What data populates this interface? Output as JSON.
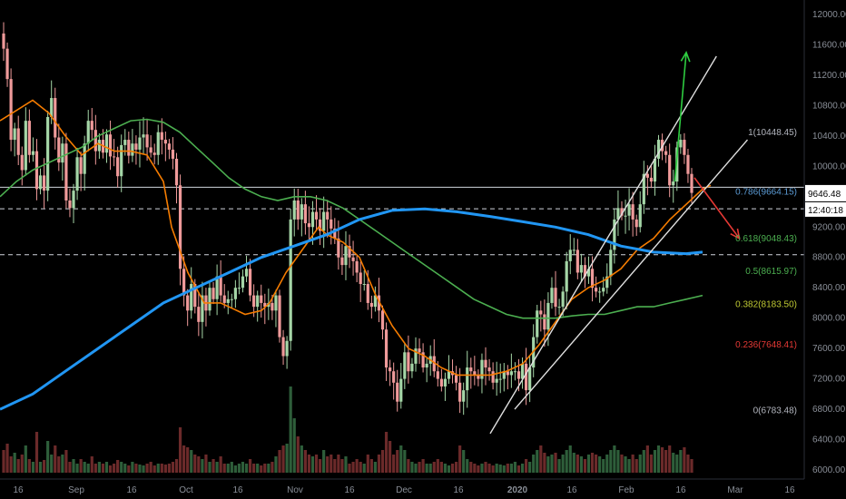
{
  "chart_data": {
    "type": "candlestick",
    "instrument": "BTCUSD daily (TradingView-style)",
    "y_axis": {
      "ylim": [
        6000,
        12000
      ],
      "ticks": [
        "12000.00",
        "11600.00",
        "11200.00",
        "10800.00",
        "10400.00",
        "10000.00",
        "9600.00",
        "9200.00",
        "8800.00",
        "8400.00",
        "8000.00",
        "7600.00",
        "7200.00",
        "6800.00",
        "6400.00",
        "6000.00"
      ],
      "tick_values": [
        12000,
        11600,
        11200,
        10800,
        10400,
        10000,
        9600,
        9200,
        8800,
        8400,
        8000,
        7600,
        7200,
        6800,
        6400,
        6000
      ]
    },
    "x_axis": {
      "ticks": [
        "16",
        "Sep",
        "16",
        "Oct",
        "16",
        "Nov",
        "16",
        "Dec",
        "16",
        "2020",
        "16",
        "Feb",
        "16",
        "Mar",
        "16"
      ],
      "bold": [
        "2020"
      ]
    },
    "fib_levels": [
      {
        "label": "1(10448.45)",
        "value": 10448.45,
        "color": "#b2b5be"
      },
      {
        "label": "0.786(9664.15)",
        "value": 9664.15,
        "color": "#5b9bd5"
      },
      {
        "label": "0.618(9048.43)",
        "value": 9048.43,
        "color": "#4caf50"
      },
      {
        "label": "0.5(8615.97)",
        "value": 8615.97,
        "color": "#4caf50"
      },
      {
        "label": "0.382(8183.50)",
        "value": 8183.5,
        "color": "#c0ca33"
      },
      {
        "label": "0.236(7648.41)",
        "value": 7648.41,
        "color": "#e53935"
      },
      {
        "label": "0(6783.48)",
        "value": 6783.48,
        "color": "#b2b5be"
      }
    ],
    "current_price": {
      "value": 9646.48,
      "label": "9646.48",
      "countdown": "12:40:18"
    },
    "horizontal_lines": [
      9724,
      9440,
      8836
    ],
    "closes": [
      11550,
      11150,
      10350,
      10500,
      10150,
      9950,
      10600,
      10150,
      10200,
      9700,
      9880,
      9680,
      10650,
      10900,
      10380,
      10050,
      10300,
      9550,
      9450,
      9680,
      10120,
      9900,
      10300,
      10600,
      10480,
      10200,
      10350,
      10180,
      10420,
      10130,
      10120,
      9870,
      10280,
      10350,
      10140,
      10300,
      10220,
      10380,
      10420,
      10250,
      10180,
      10150,
      10450,
      10350,
      10300,
      10220,
      10100,
      9750,
      8650,
      8300,
      8100,
      8450,
      8150,
      7950,
      8300,
      8100,
      8400,
      8250,
      8550,
      8300,
      8200,
      8250,
      8250,
      8400,
      8400,
      8550,
      8650,
      8300,
      8150,
      8300,
      8200,
      8150,
      8200,
      8100,
      8300,
      7750,
      7500,
      7700,
      9300,
      9550,
      9300,
      9500,
      9250,
      9200,
      9400,
      9300,
      9150,
      9400,
      9300,
      9180,
      9050,
      8800,
      8700,
      8950,
      8800,
      8750,
      8600,
      8450,
      8450,
      8200,
      8150,
      8300,
      8100,
      7850,
      7350,
      7300,
      7150,
      6900,
      7200,
      7550,
      7300,
      7400,
      7600,
      7550,
      7350,
      7400,
      7500,
      7300,
      7200,
      7100,
      7200,
      7300,
      7250,
      7150,
      6900,
      7050,
      7350,
      7300,
      7250,
      7200,
      7450,
      7350,
      7300,
      7150,
      7200,
      7200,
      7300,
      7250,
      7300,
      7300,
      7200,
      7400,
      7050,
      7350,
      7750,
      8100,
      8050,
      7850,
      8200,
      8400,
      8150,
      8150,
      8350,
      8750,
      8900,
      8900,
      8600,
      8700,
      8550,
      8650,
      8400,
      8350,
      8350,
      8400,
      8550,
      8900,
      9300,
      9450,
      9350,
      9350,
      9500,
      9300,
      9200,
      9500,
      9900,
      9850,
      9800,
      10100,
      10350,
      10200,
      10150,
      9750,
      9800,
      10250,
      10350,
      10150,
      9900,
      9650
    ],
    "volumes": [
      0.25,
      0.32,
      0.18,
      0.22,
      0.15,
      0.2,
      0.3,
      0.15,
      0.12,
      0.45,
      0.12,
      0.14,
      0.35,
      0.2,
      0.3,
      0.18,
      0.2,
      0.25,
      0.12,
      0.15,
      0.1,
      0.15,
      0.12,
      0.1,
      0.18,
      0.1,
      0.12,
      0.1,
      0.12,
      0.08,
      0.1,
      0.14,
      0.12,
      0.1,
      0.08,
      0.12,
      0.1,
      0.09,
      0.08,
      0.1,
      0.12,
      0.08,
      0.1,
      0.1,
      0.09,
      0.1,
      0.12,
      0.15,
      0.5,
      0.3,
      0.28,
      0.25,
      0.2,
      0.18,
      0.15,
      0.2,
      0.12,
      0.15,
      0.12,
      0.18,
      0.1,
      0.1,
      0.12,
      0.08,
      0.1,
      0.12,
      0.1,
      0.15,
      0.1,
      0.1,
      0.08,
      0.1,
      0.1,
      0.12,
      0.18,
      0.25,
      0.3,
      0.32,
      0.95,
      0.6,
      0.4,
      0.3,
      0.25,
      0.2,
      0.18,
      0.2,
      0.15,
      0.25,
      0.18,
      0.2,
      0.15,
      0.2,
      0.15,
      0.18,
      0.1,
      0.12,
      0.15,
      0.12,
      0.1,
      0.2,
      0.15,
      0.12,
      0.2,
      0.25,
      0.45,
      0.35,
      0.2,
      0.25,
      0.3,
      0.25,
      0.15,
      0.12,
      0.1,
      0.12,
      0.15,
      0.1,
      0.1,
      0.12,
      0.15,
      0.12,
      0.1,
      0.08,
      0.1,
      0.12,
      0.3,
      0.25,
      0.15,
      0.12,
      0.1,
      0.08,
      0.1,
      0.12,
      0.1,
      0.08,
      0.1,
      0.09,
      0.08,
      0.1,
      0.1,
      0.12,
      0.08,
      0.1,
      0.15,
      0.12,
      0.2,
      0.25,
      0.3,
      0.22,
      0.18,
      0.2,
      0.22,
      0.15,
      0.2,
      0.25,
      0.3,
      0.22,
      0.2,
      0.18,
      0.15,
      0.2,
      0.22,
      0.2,
      0.18,
      0.15,
      0.2,
      0.25,
      0.3,
      0.25,
      0.2,
      0.18,
      0.15,
      0.2,
      0.15,
      0.2,
      0.25,
      0.3,
      0.2,
      0.25,
      0.3,
      0.28,
      0.25,
      0.3,
      0.22,
      0.2,
      0.25,
      0.28,
      0.2,
      0.15,
      0.1
    ],
    "series": [
      {
        "name": "EMA (orange)",
        "color": "#f57c00",
        "xy": [
          [
            0,
            10600
          ],
          [
            0.04,
            10870
          ],
          [
            0.06,
            10700
          ],
          [
            0.08,
            10400
          ],
          [
            0.1,
            10150
          ],
          [
            0.12,
            10300
          ],
          [
            0.14,
            10200
          ],
          [
            0.16,
            10200
          ],
          [
            0.18,
            10150
          ],
          [
            0.2,
            9800
          ],
          [
            0.21,
            9200
          ],
          [
            0.23,
            8600
          ],
          [
            0.25,
            8200
          ],
          [
            0.27,
            8200
          ],
          [
            0.3,
            8050
          ],
          [
            0.32,
            8100
          ],
          [
            0.33,
            8200
          ],
          [
            0.35,
            8600
          ],
          [
            0.37,
            8900
          ],
          [
            0.39,
            9200
          ],
          [
            0.4,
            9100
          ],
          [
            0.42,
            9000
          ],
          [
            0.44,
            8800
          ],
          [
            0.46,
            8300
          ],
          [
            0.48,
            7900
          ],
          [
            0.5,
            7600
          ],
          [
            0.52,
            7500
          ],
          [
            0.54,
            7350
          ],
          [
            0.56,
            7250
          ],
          [
            0.58,
            7250
          ],
          [
            0.6,
            7250
          ],
          [
            0.62,
            7300
          ],
          [
            0.64,
            7400
          ],
          [
            0.66,
            7650
          ],
          [
            0.68,
            7950
          ],
          [
            0.7,
            8250
          ],
          [
            0.72,
            8400
          ],
          [
            0.74,
            8500
          ],
          [
            0.76,
            8650
          ],
          [
            0.78,
            8900
          ],
          [
            0.8,
            9050
          ],
          [
            0.82,
            9300
          ],
          [
            0.84,
            9500
          ],
          [
            0.86,
            9700
          ],
          [
            0.87,
            9750
          ]
        ]
      },
      {
        "name": "MA (green)",
        "color": "#4caf50",
        "xy": [
          [
            0,
            9600
          ],
          [
            0.02,
            9800
          ],
          [
            0.04,
            9950
          ],
          [
            0.06,
            10050
          ],
          [
            0.08,
            10150
          ],
          [
            0.1,
            10250
          ],
          [
            0.12,
            10400
          ],
          [
            0.14,
            10500
          ],
          [
            0.16,
            10600
          ],
          [
            0.18,
            10620
          ],
          [
            0.2,
            10580
          ],
          [
            0.22,
            10450
          ],
          [
            0.24,
            10250
          ],
          [
            0.26,
            10050
          ],
          [
            0.28,
            9850
          ],
          [
            0.3,
            9700
          ],
          [
            0.32,
            9600
          ],
          [
            0.34,
            9550
          ],
          [
            0.36,
            9600
          ],
          [
            0.38,
            9600
          ],
          [
            0.4,
            9550
          ],
          [
            0.42,
            9450
          ],
          [
            0.44,
            9300
          ],
          [
            0.46,
            9150
          ],
          [
            0.48,
            9000
          ],
          [
            0.5,
            8850
          ],
          [
            0.52,
            8700
          ],
          [
            0.54,
            8550
          ],
          [
            0.56,
            8400
          ],
          [
            0.58,
            8250
          ],
          [
            0.6,
            8150
          ],
          [
            0.62,
            8050
          ],
          [
            0.64,
            8000
          ],
          [
            0.66,
            8000
          ],
          [
            0.68,
            8000
          ],
          [
            0.7,
            8030
          ],
          [
            0.72,
            8050
          ],
          [
            0.74,
            8050
          ],
          [
            0.76,
            8100
          ],
          [
            0.78,
            8150
          ],
          [
            0.8,
            8150
          ],
          [
            0.82,
            8200
          ],
          [
            0.84,
            8250
          ],
          [
            0.86,
            8300
          ]
        ]
      },
      {
        "name": "MA (blue)",
        "color": "#2196f3",
        "xy": [
          [
            0,
            6800
          ],
          [
            0.04,
            7000
          ],
          [
            0.08,
            7300
          ],
          [
            0.12,
            7600
          ],
          [
            0.16,
            7900
          ],
          [
            0.2,
            8200
          ],
          [
            0.24,
            8400
          ],
          [
            0.28,
            8600
          ],
          [
            0.32,
            8800
          ],
          [
            0.36,
            8950
          ],
          [
            0.4,
            9100
          ],
          [
            0.44,
            9300
          ],
          [
            0.48,
            9420
          ],
          [
            0.52,
            9440
          ],
          [
            0.56,
            9400
          ],
          [
            0.6,
            9340
          ],
          [
            0.64,
            9270
          ],
          [
            0.68,
            9200
          ],
          [
            0.72,
            9100
          ],
          [
            0.76,
            8950
          ],
          [
            0.8,
            8870
          ],
          [
            0.84,
            8850
          ],
          [
            0.86,
            8870
          ]
        ]
      }
    ],
    "drawings": {
      "channel_upper": [
        [
          6480,
          0.6
        ],
        [
          11450,
          0.877
        ]
      ],
      "channel_lower": [
        [
          6800,
          0.63
        ],
        [
          10350,
          0.915
        ]
      ],
      "arrow_up": {
        "color": "#2ecc40",
        "from": [
          9800,
          0.826
        ],
        "to": [
          11500,
          0.84
        ]
      },
      "arrow_down": {
        "color": "#e53935",
        "from": [
          9850,
          0.85
        ],
        "to": [
          9050,
          0.905
        ]
      }
    }
  }
}
